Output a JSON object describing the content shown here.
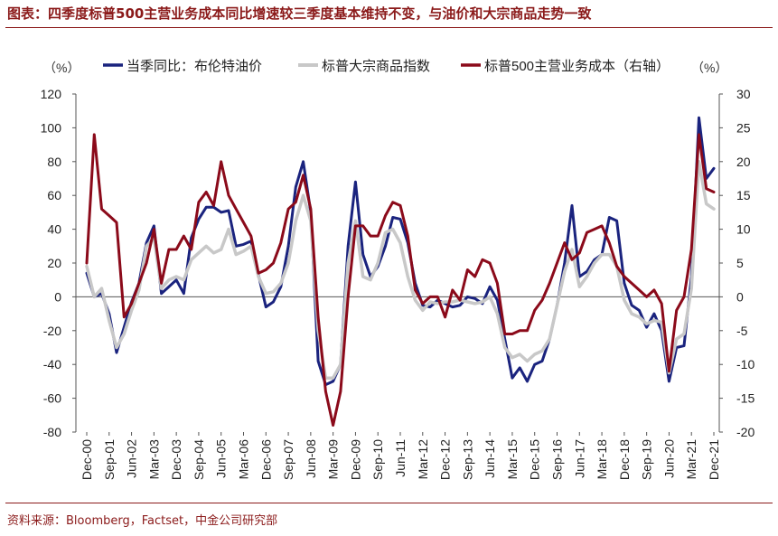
{
  "title": "图表：四季度标普500主营业务成本同比增速较三季度基本维持不变，与油价和大宗商品走势一致",
  "source": "资料来源：Bloomberg，Factset，中金公司研究部",
  "colors": {
    "accent": "#8B1A1A",
    "oil": "#1A237E",
    "commodity": "#C8C8C8",
    "cost": "#8B0A1A"
  },
  "chart_data": {
    "type": "line",
    "left_unit": "（%）",
    "right_unit": "（%）",
    "y_left": {
      "min": -80,
      "max": 120,
      "ticks": [
        120,
        100,
        80,
        60,
        40,
        20,
        0,
        -20,
        -40,
        -60,
        -80
      ]
    },
    "y_right": {
      "min": -20,
      "max": 30,
      "ticks": [
        30,
        25,
        20,
        15,
        10,
        5,
        0,
        -5,
        -10,
        -15,
        -20
      ]
    },
    "x_ticks": [
      "Dec-00",
      "Sep-01",
      "Jun-02",
      "Mar-03",
      "Dec-03",
      "Sep-04",
      "Jun-05",
      "Mar-06",
      "Dec-06",
      "Sep-07",
      "Jun-08",
      "Mar-09",
      "Dec-09",
      "Sep-10",
      "Jun-11",
      "Mar-12",
      "Dec-12",
      "Sep-13",
      "Jun-14",
      "Mar-15",
      "Dec-15",
      "Sep-16",
      "Jun-17",
      "Mar-18",
      "Dec-18",
      "Sep-19",
      "Jun-20",
      "Mar-21",
      "Dec-21"
    ],
    "series": [
      {
        "name": "当季同比：布伦特油价",
        "axis": "left",
        "color": "#1A237E",
        "width": 3,
        "values": [
          14,
          0,
          2,
          -10,
          -33,
          -18,
          -3,
          8,
          32,
          42,
          2,
          6,
          10,
          2,
          35,
          46,
          53,
          53,
          50,
          51,
          30,
          31,
          33,
          13,
          -6,
          -3,
          6,
          30,
          65,
          80,
          50,
          -38,
          -52,
          -50,
          -40,
          30,
          68,
          25,
          12,
          18,
          30,
          47,
          46,
          32,
          8,
          -5,
          -6,
          -2,
          -4,
          -6,
          -5,
          0,
          -1,
          -4,
          6,
          -2,
          -25,
          -48,
          -42,
          -50,
          -40,
          -38,
          -25,
          -5,
          20,
          54,
          12,
          15,
          22,
          25,
          47,
          45,
          8,
          -5,
          -8,
          -18,
          -10,
          -20,
          -50,
          -30,
          -29,
          12,
          106,
          70,
          76
        ]
      },
      {
        "name": "标普大宗商品指数",
        "axis": "left",
        "color": "#C8C8C8",
        "width": 3.5,
        "values": [
          18,
          0,
          5,
          -14,
          -30,
          -22,
          -8,
          4,
          30,
          35,
          5,
          10,
          12,
          10,
          22,
          26,
          30,
          26,
          28,
          40,
          25,
          27,
          30,
          12,
          2,
          3,
          8,
          20,
          45,
          60,
          45,
          -20,
          -48,
          -48,
          -40,
          20,
          45,
          12,
          10,
          20,
          38,
          40,
          32,
          12,
          -2,
          -8,
          -3,
          -4,
          -3,
          -3,
          -2,
          -3,
          -4,
          -3,
          0,
          -10,
          -30,
          -36,
          -34,
          -38,
          -34,
          -32,
          -25,
          -5,
          15,
          28,
          6,
          12,
          20,
          25,
          25,
          18,
          -2,
          -10,
          -12,
          -16,
          -14,
          -15,
          -45,
          -25,
          -22,
          5,
          80,
          55,
          52
        ]
      },
      {
        "name": "标普500主营业务成本（右轴）",
        "axis": "right",
        "color": "#8B0A1A",
        "width": 3,
        "values": [
          5,
          24,
          13,
          12,
          11,
          -3,
          -1,
          2,
          5,
          10,
          2,
          7,
          7,
          9,
          7,
          14,
          15.5,
          13.5,
          20,
          15,
          13,
          11,
          9,
          3.5,
          4,
          5,
          8,
          13,
          14,
          18,
          13,
          -3,
          -14,
          -19,
          -14,
          0,
          10.5,
          10.5,
          9,
          9,
          12,
          14,
          13.5,
          9,
          1,
          -1,
          0,
          0,
          -3,
          1,
          -0.5,
          4,
          3,
          5.5,
          5,
          2,
          -5.5,
          -5.5,
          -5,
          -5,
          -2,
          -0.5,
          2,
          5,
          8,
          5.5,
          6.5,
          9.5,
          10,
          10.5,
          8,
          4.5,
          3,
          2,
          1,
          0,
          1,
          -1,
          -11,
          -2,
          0,
          7,
          24,
          16,
          15.5
        ]
      }
    ]
  }
}
